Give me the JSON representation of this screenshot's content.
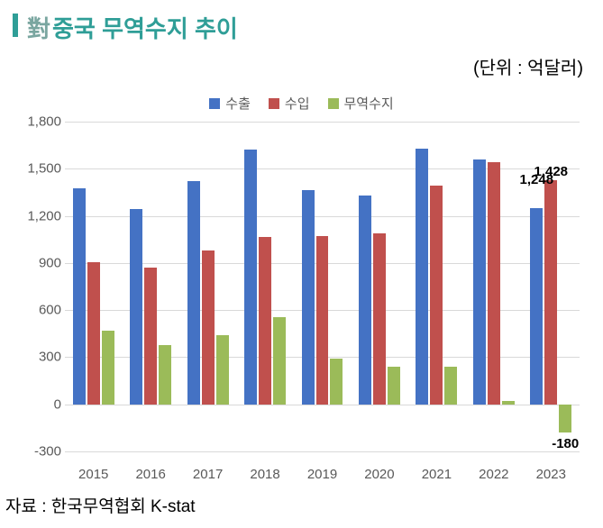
{
  "title": {
    "bar_color": "#2f9e97",
    "hanja": "對",
    "hanja_color": "#7aa6a0",
    "text": "중국 무역수지 추이",
    "text_color": "#2f9e97"
  },
  "unit": "(단위 : 억달러)",
  "source": "자료 : 한국무역협회 K-stat",
  "chart": {
    "type": "bar",
    "background_color": "#ffffff",
    "grid_color": "#d9d9d9",
    "ylim_min": -300,
    "ylim_max": 1800,
    "ytick_step": 300,
    "yticks": [
      -300,
      0,
      300,
      600,
      900,
      1200,
      1500,
      1800
    ],
    "categories": [
      "2015",
      "2016",
      "2017",
      "2018",
      "2019",
      "2020",
      "2021",
      "2022",
      "2023"
    ],
    "series": [
      {
        "key": "exports",
        "label": "수출",
        "color": "#4472c4",
        "values": [
          1373,
          1245,
          1421,
          1620,
          1362,
          1330,
          1630,
          1560,
          1248
        ]
      },
      {
        "key": "imports",
        "label": "수입",
        "color": "#c0504d",
        "values": [
          903,
          870,
          980,
          1065,
          1072,
          1090,
          1390,
          1540,
          1428
        ]
      },
      {
        "key": "balance",
        "label": "무역수지",
        "color": "#9bbb59",
        "values": [
          470,
          375,
          441,
          555,
          290,
          240,
          240,
          20,
          -180
        ]
      }
    ],
    "bar_width_rel": 0.22,
    "data_labels": [
      {
        "category_index": 8,
        "series_index": 0,
        "text": "1,248",
        "dy": -40
      },
      {
        "category_index": 8,
        "series_index": 1,
        "text": "1,428",
        "dy": -18
      },
      {
        "category_index": 8,
        "series_index": 2,
        "text": "-180",
        "dy": 10,
        "below": true
      }
    ],
    "label_fontsize": 15,
    "tick_fontsize": 15,
    "tick_color": "#595959"
  }
}
